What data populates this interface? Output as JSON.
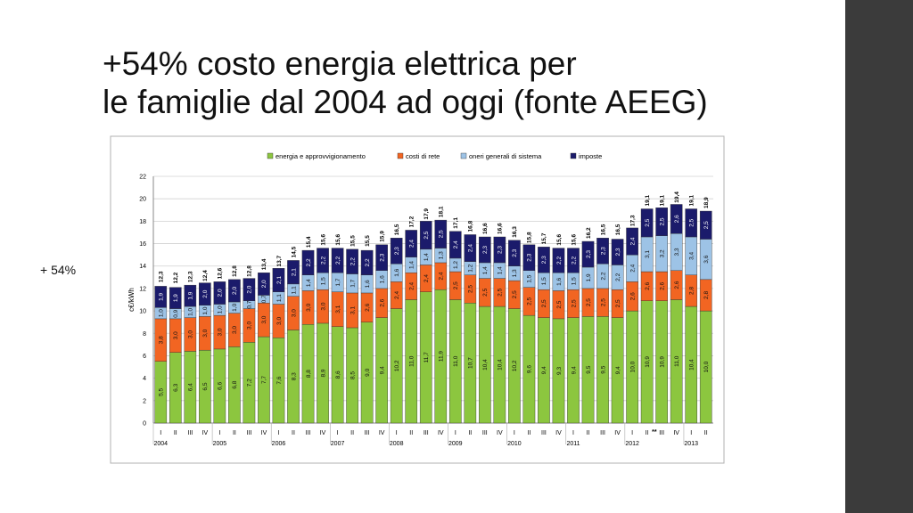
{
  "slide_title": "+54% costo energia elettrica per le famiglie dal 2004 ad oggi (fonte AEEG)",
  "side_note": "+ 54%",
  "chart_data": {
    "type": "stacked_bar",
    "y_label": "c€/kWh",
    "categories": [
      "I",
      "II",
      "III",
      "IV",
      "I",
      "II",
      "III",
      "IV",
      "I",
      "II",
      "III",
      "IV",
      "I",
      "II",
      "III",
      "IV",
      "I",
      "II",
      "III",
      "IV",
      "I",
      "II",
      "III",
      "IV",
      "I",
      "II",
      "III",
      "IV",
      "I",
      "II",
      "III",
      "IV",
      "I",
      "II",
      "III",
      "IV",
      "I",
      "II"
    ],
    "years": [
      "2004",
      "2005",
      "2006",
      "2007",
      "2008",
      "2009",
      "2010",
      "2011",
      "2012",
      "2013"
    ],
    "annotation": "**",
    "ylim": [
      0,
      22
    ],
    "yticks": [
      0,
      2,
      4,
      6,
      8,
      10,
      12,
      14,
      16,
      18,
      20,
      22
    ],
    "grid": true,
    "legend": "top",
    "series": [
      {
        "name": "energia e approvvigionamento",
        "color": "#8cc63f",
        "values": [
          5.5,
          6.3,
          6.4,
          6.5,
          6.6,
          6.8,
          7.2,
          7.7,
          7.6,
          8.3,
          8.8,
          8.9,
          8.6,
          8.5,
          9.0,
          9.4,
          10.2,
          11.0,
          11.7,
          11.9,
          11.0,
          10.7,
          10.4,
          10.4,
          10.2,
          9.6,
          9.4,
          9.3,
          9.4,
          9.5,
          9.5,
          9.4,
          10.0,
          10.9,
          10.9,
          11.0,
          10.4,
          10.0
        ],
        "value_labels": [
          "5,5",
          "6,3",
          "6,4",
          "6,5",
          "6,6",
          "6,8",
          "7,2",
          "7,7",
          "7,6",
          "8,3",
          "8,8",
          "8,9",
          "8,6",
          "8,5",
          "9,0",
          "9,4",
          "10,2",
          "11,0",
          "11,7",
          "11,9",
          "11,0",
          "10,7",
          "10,4",
          "10,4",
          "10,2",
          "9,6",
          "9,4",
          "9,3",
          "9,4",
          "9,5",
          "9,5",
          "9,4",
          "10,0",
          "10,9",
          "10,9",
          "11,0",
          "10,4",
          "10,0"
        ]
      },
      {
        "name": "costi di rete",
        "color": "#f26522",
        "values": [
          3.8,
          3.0,
          3.0,
          3.0,
          3.0,
          3.0,
          3.0,
          3.0,
          3.0,
          3.0,
          3.0,
          3.0,
          3.1,
          3.1,
          2.6,
          2.6,
          2.4,
          2.4,
          2.4,
          2.4,
          2.5,
          2.5,
          2.5,
          2.5,
          2.5,
          2.5,
          2.5,
          2.5,
          2.5,
          2.5,
          2.5,
          2.5,
          2.6,
          2.6,
          2.6,
          2.6,
          2.8,
          2.8
        ],
        "value_labels": [
          "3,8",
          "3,0",
          "3,0",
          "3,0",
          "3,0",
          "3,0",
          "3,0",
          "3,0",
          "3,0",
          "3,0",
          "3,0",
          "3,0",
          "3,1",
          "3,1",
          "2,6",
          "2,6",
          "2,4",
          "2,4",
          "2,4",
          "2,4",
          "2,5",
          "2,5",
          "2,5",
          "2,5",
          "2,5",
          "2,5",
          "2,5",
          "2,5",
          "2,5",
          "2,5",
          "2,5",
          "2,5",
          "2,6",
          "2,6",
          "2,6",
          "2,6",
          "2,8",
          "2,8"
        ]
      },
      {
        "name": "oneri generali di sistema",
        "color": "#9dc3e6",
        "values": [
          1.0,
          0.9,
          1.0,
          1.0,
          1.0,
          1.0,
          0.7,
          0.7,
          1.1,
          1.1,
          1.4,
          1.5,
          1.7,
          1.7,
          1.6,
          1.6,
          1.6,
          1.4,
          1.4,
          1.3,
          1.2,
          1.2,
          1.4,
          1.4,
          1.3,
          1.5,
          1.5,
          1.6,
          1.5,
          1.9,
          2.2,
          2.2,
          2.4,
          3.1,
          3.2,
          3.3,
          3.4,
          3.6
        ],
        "value_labels": [
          "1,0",
          "0,9",
          "1,0",
          "1,0",
          "1,0",
          "1,0",
          "0,7",
          "0,7",
          "1,1",
          "1,1",
          "1,4",
          "1,5",
          "1,7",
          "1,7",
          "1,6",
          "1,6",
          "1,6",
          "1,4",
          "1,4",
          "1,3",
          "1,2",
          "1,2",
          "1,4",
          "1,4",
          "1,3",
          "1,5",
          "1,5",
          "1,6",
          "1,5",
          "1,9",
          "2,2",
          "2,2",
          "2,4",
          "3,1",
          "3,2",
          "3,3",
          "3,4",
          "3,6"
        ]
      },
      {
        "name": "imposte",
        "color": "#1b1b6b",
        "values": [
          1.9,
          1.9,
          1.9,
          2.0,
          2.0,
          2.0,
          2.0,
          2.0,
          2.1,
          2.1,
          2.2,
          2.2,
          2.2,
          2.2,
          2.2,
          2.3,
          2.3,
          2.4,
          2.5,
          2.5,
          2.4,
          2.4,
          2.3,
          2.3,
          2.3,
          2.3,
          2.3,
          2.2,
          2.2,
          2.3,
          2.3,
          2.3,
          2.4,
          2.5,
          2.5,
          2.6,
          2.5,
          2.5
        ],
        "value_labels": [
          "1,9",
          "1,9",
          "1,9",
          "2,0",
          "2,0",
          "2,0",
          "2,0",
          "2,0",
          "2,1",
          "2,1",
          "2,2",
          "2,2",
          "2,2",
          "2,2",
          "2,2",
          "2,3",
          "2,3",
          "2,4",
          "2,5",
          "2,5",
          "2,4",
          "2,4",
          "2,3",
          "2,3",
          "2,3",
          "2,3",
          "2,3",
          "2,2",
          "2,2",
          "2,3",
          "2,3",
          "2,3",
          "2,4",
          "2,5",
          "2,5",
          "2,6",
          "2,5",
          "2,5"
        ]
      }
    ],
    "totals": [
      12.3,
      12.2,
      12.3,
      12.4,
      12.6,
      12.8,
      12.8,
      13.4,
      13.7,
      14.5,
      15.4,
      15.6,
      15.6,
      15.5,
      15.5,
      15.9,
      16.5,
      17.2,
      17.9,
      18.1,
      17.1,
      16.8,
      16.6,
      16.6,
      16.3,
      15.8,
      15.7,
      15.6,
      15.6,
      16.2,
      16.5,
      16.5,
      17.3,
      19.1,
      19.1,
      19.4,
      19.1,
      18.9
    ],
    "total_labels": [
      "12,3",
      "12,2",
      "12,3",
      "12,4",
      "12,6",
      "12,8",
      "12,8",
      "13,4",
      "13,7",
      "14,5",
      "15,4",
      "15,6",
      "15,6",
      "15,5",
      "15,5",
      "15,9",
      "16,5",
      "17,2",
      "17,9",
      "18,1",
      "17,1",
      "16,8",
      "16,6",
      "16,6",
      "16,3",
      "15,8",
      "15,7",
      "15,6",
      "15,6",
      "16,2",
      "16,5",
      "16,5",
      "17,3",
      "19,1",
      "19,1",
      "19,4",
      "19,1",
      "18,9"
    ]
  }
}
